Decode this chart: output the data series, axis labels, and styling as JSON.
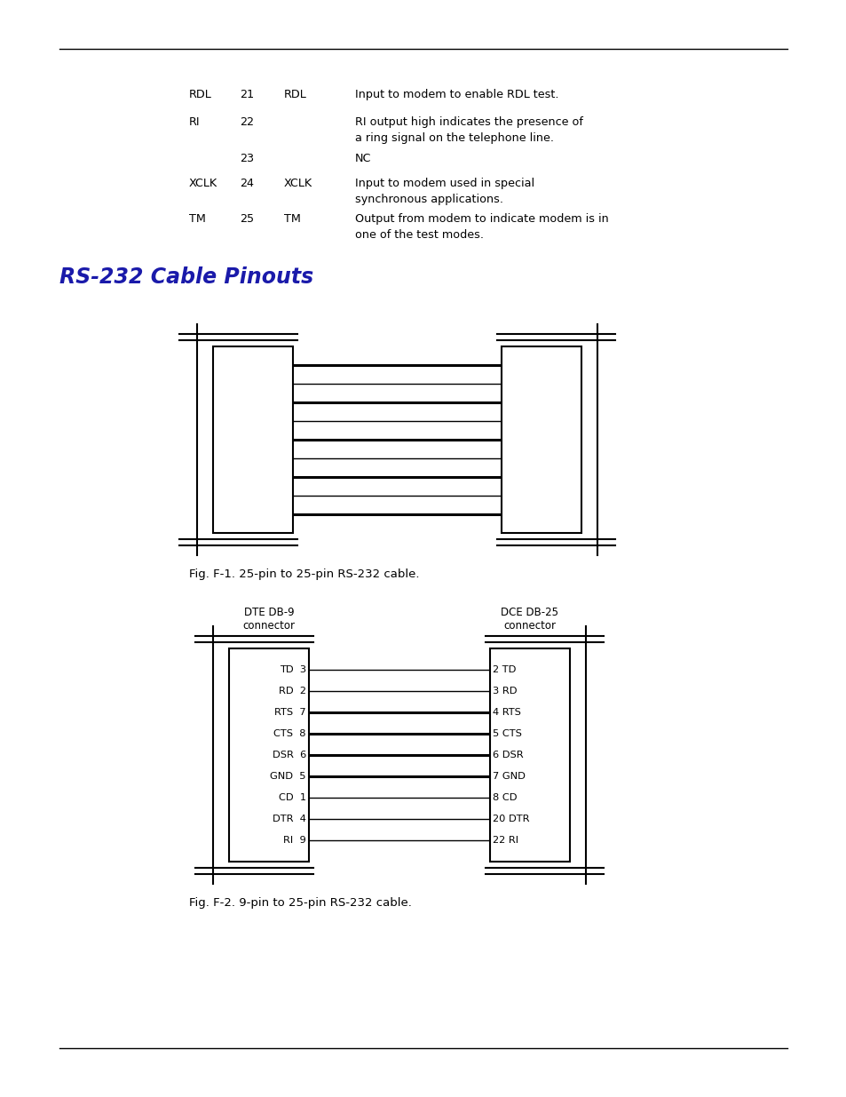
{
  "bg_color": "#ffffff",
  "header_table": {
    "rows": [
      {
        "col1": "RDL",
        "col2": "21",
        "col3": "RDL",
        "col4a": "Input to modem to enable RDL test.",
        "col4b": ""
      },
      {
        "col1": "RI",
        "col2": "22",
        "col3": "",
        "col4a": "RI output high indicates the presence of",
        "col4b": "a ring signal on the telephone line."
      },
      {
        "col1": "",
        "col2": "23",
        "col3": "",
        "col4a": "NC",
        "col4b": ""
      },
      {
        "col1": "XCLK",
        "col2": "24",
        "col3": "XCLK",
        "col4a": "Input to modem used in special",
        "col4b": "synchronous applications."
      },
      {
        "col1": "TM",
        "col2": "25",
        "col3": "TM",
        "col4a": "Output from modem to indicate modem is in",
        "col4b": "one of the test modes."
      }
    ]
  },
  "section_title": "RS-232 Cable Pinouts",
  "section_title_color": "#1a1aaa",
  "fig1_caption": "Fig. F-1. 25-pin to 25-pin RS-232 cable.",
  "fig2_caption": "Fig. F-2. 9-pin to 25-pin RS-232 cable.",
  "db9_left_labels": [
    "TD  3",
    "RD  2",
    "RTS  7",
    "CTS  8",
    "DSR  6",
    "GND  5",
    "CD  1",
    "DTR  4",
    "RI  9"
  ],
  "db25_right_labels": [
    "2 TD",
    "3 RD",
    "4 RTS",
    "5 CTS",
    "6 DSR",
    "7 GND",
    "8 CD",
    "20 DTR",
    "22 RI"
  ],
  "bold_wires_fig1": [
    0,
    2,
    4,
    6,
    8
  ],
  "bold_wires_fig2": [
    2,
    3,
    4,
    5
  ]
}
